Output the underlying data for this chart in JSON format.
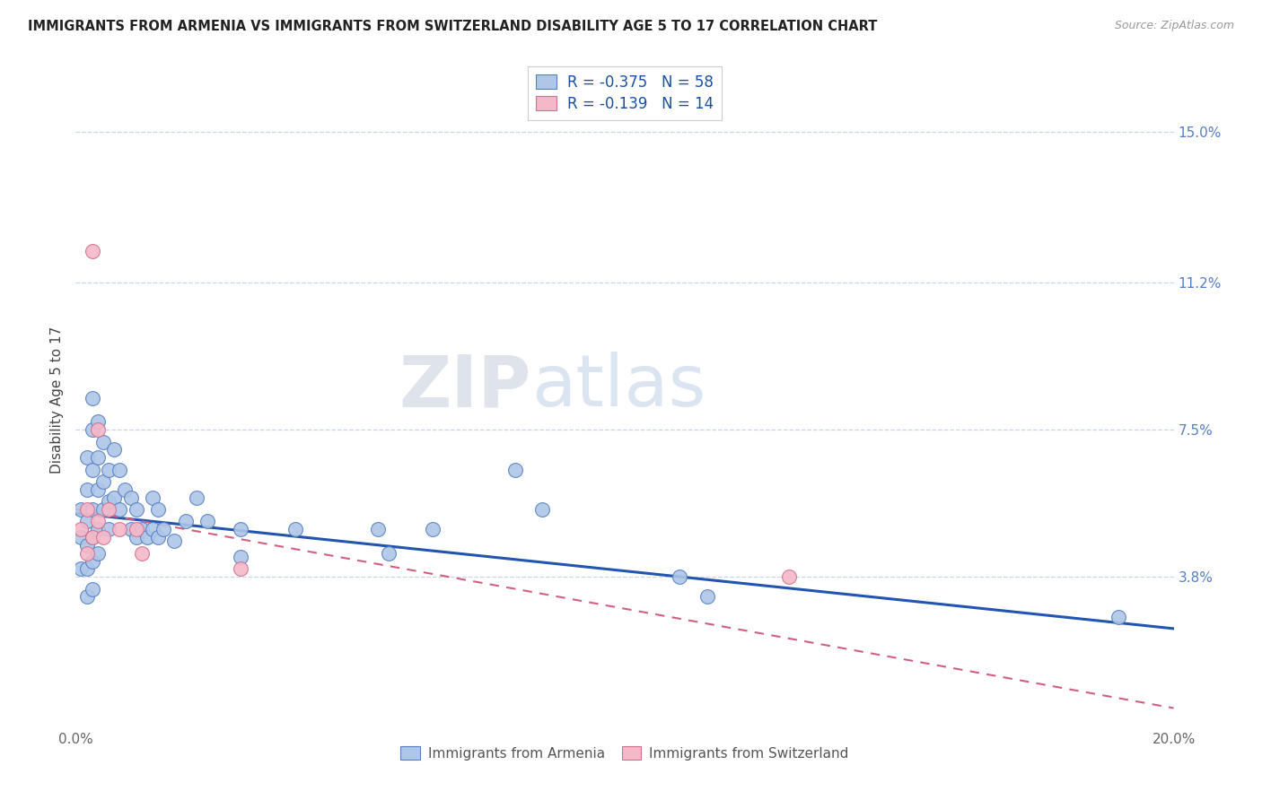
{
  "title": "IMMIGRANTS FROM ARMENIA VS IMMIGRANTS FROM SWITZERLAND DISABILITY AGE 5 TO 17 CORRELATION CHART",
  "source": "Source: ZipAtlas.com",
  "ylabel": "Disability Age 5 to 17",
  "x_min": 0.0,
  "x_max": 0.2,
  "y_min": 0.0,
  "y_max": 0.165,
  "y_ticks": [
    0.038,
    0.075,
    0.112,
    0.15
  ],
  "y_tick_labels": [
    "3.8%",
    "7.5%",
    "11.2%",
    "15.0%"
  ],
  "x_ticks": [
    0.0,
    0.04,
    0.08,
    0.12,
    0.16,
    0.2
  ],
  "x_tick_labels": [
    "0.0%",
    "",
    "",
    "",
    "",
    "20.0%"
  ],
  "armenia_R": "-0.375",
  "armenia_N": "58",
  "switzerland_R": "-0.139",
  "switzerland_N": "14",
  "armenia_color": "#aec6e8",
  "switzerland_color": "#f5b8c8",
  "armenia_edge_color": "#5580c0",
  "switzerland_edge_color": "#d07090",
  "armenia_line_color": "#2255b0",
  "switzerland_line_color": "#d06080",
  "background_color": "#ffffff",
  "grid_color": "#c8d4e8",
  "legend_items": [
    {
      "label": "Immigrants from Armenia",
      "color": "#aec6e8"
    },
    {
      "label": "Immigrants from Switzerland",
      "color": "#f5b8c8"
    }
  ],
  "armenia_x": [
    0.001,
    0.001,
    0.001,
    0.002,
    0.002,
    0.002,
    0.002,
    0.002,
    0.002,
    0.003,
    0.003,
    0.003,
    0.003,
    0.003,
    0.003,
    0.003,
    0.004,
    0.004,
    0.004,
    0.004,
    0.004,
    0.005,
    0.005,
    0.005,
    0.006,
    0.006,
    0.006,
    0.007,
    0.007,
    0.008,
    0.008,
    0.009,
    0.01,
    0.01,
    0.011,
    0.011,
    0.012,
    0.013,
    0.014,
    0.014,
    0.015,
    0.015,
    0.016,
    0.018,
    0.02,
    0.022,
    0.024,
    0.03,
    0.03,
    0.04,
    0.055,
    0.057,
    0.065,
    0.08,
    0.085,
    0.11,
    0.115,
    0.19
  ],
  "armenia_y": [
    0.055,
    0.048,
    0.04,
    0.068,
    0.06,
    0.052,
    0.046,
    0.04,
    0.033,
    0.083,
    0.075,
    0.065,
    0.055,
    0.048,
    0.042,
    0.035,
    0.077,
    0.068,
    0.06,
    0.05,
    0.044,
    0.072,
    0.062,
    0.055,
    0.065,
    0.057,
    0.05,
    0.07,
    0.058,
    0.065,
    0.055,
    0.06,
    0.058,
    0.05,
    0.055,
    0.048,
    0.05,
    0.048,
    0.058,
    0.05,
    0.055,
    0.048,
    0.05,
    0.047,
    0.052,
    0.058,
    0.052,
    0.05,
    0.043,
    0.05,
    0.05,
    0.044,
    0.05,
    0.065,
    0.055,
    0.038,
    0.033,
    0.028
  ],
  "switzerland_x": [
    0.001,
    0.002,
    0.002,
    0.003,
    0.003,
    0.004,
    0.004,
    0.005,
    0.006,
    0.008,
    0.011,
    0.012,
    0.03,
    0.13
  ],
  "switzerland_y": [
    0.05,
    0.055,
    0.044,
    0.12,
    0.048,
    0.075,
    0.052,
    0.048,
    0.055,
    0.05,
    0.05,
    0.044,
    0.04,
    0.038
  ],
  "arm_line_x0": 0.0,
  "arm_line_y0": 0.054,
  "arm_line_x1": 0.2,
  "arm_line_y1": 0.025,
  "swi_line_x0": 0.0,
  "swi_line_y0": 0.055,
  "swi_line_x1": 0.2,
  "swi_line_y1": 0.005
}
